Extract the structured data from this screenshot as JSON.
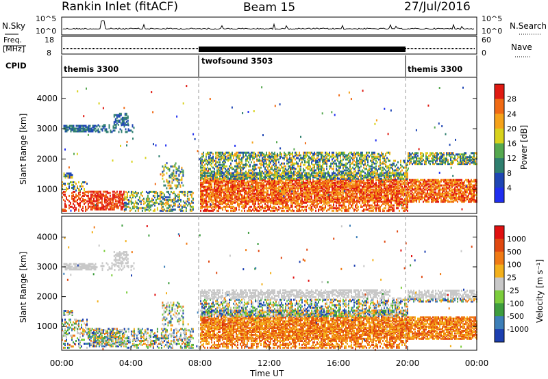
{
  "header": {
    "station": "Rankin Inlet (fitACF)",
    "beam": "Beam 15",
    "date": "27/Jul/2016"
  },
  "chart_data": [
    {
      "type": "line",
      "panel": "noise",
      "left_label": "N.Sky",
      "right_label": "N.Search",
      "ticks_left": [
        "10^5",
        "10^0"
      ],
      "ticks_right": [
        "10^5",
        "10^0"
      ],
      "description_series": [
        {
          "name": "N.Sky",
          "style": "solid"
        },
        {
          "name": "N.Search",
          "style": "dotted"
        }
      ]
    },
    {
      "type": "line",
      "panel": "frequency",
      "left_label": "Freq.",
      "left_unit": "[MHz]",
      "right_label": "Nave",
      "ticks_left": [
        "18",
        "8"
      ],
      "ticks_right": [
        "60",
        "0"
      ]
    },
    {
      "type": "table",
      "panel": "cpid",
      "label": "CPID",
      "segments": [
        {
          "name": "themis 3300",
          "start_hour": 0,
          "end_hour": 8
        },
        {
          "name": "twofsound 3503",
          "start_hour": 8,
          "end_hour": 20
        },
        {
          "name": "themis 3300",
          "start_hour": 20,
          "end_hour": 24
        }
      ]
    },
    {
      "type": "heatmap",
      "panel": "power",
      "ylabel": "Slant Range [km]",
      "yticks": [
        1000,
        2000,
        3000,
        4000
      ],
      "ylim": [
        200,
        4700
      ],
      "colorbar_label": "Power [dB]",
      "colorbar_ticks": [
        "28",
        "24",
        "20",
        "16",
        "12",
        "8",
        "4"
      ],
      "colors": [
        "#1f2ef0",
        "#1f46b4",
        "#2f7f6f",
        "#55a84f",
        "#d8d21c",
        "#f5a21a",
        "#f06a14",
        "#e01a12"
      ]
    },
    {
      "type": "heatmap",
      "panel": "velocity",
      "ylabel": "Slant Range [km]",
      "yticks": [
        1000,
        2000,
        3000,
        4000
      ],
      "ylim": [
        200,
        4700
      ],
      "colorbar_label": "Velocity [m s⁻¹]",
      "colorbar_ticks": [
        "1000",
        "500",
        "100",
        "25",
        "-25",
        "-100",
        "-500",
        "-1000"
      ],
      "colors": [
        "#1c3fb0",
        "#3d7fb8",
        "#3e9d3e",
        "#7ccd3c",
        "#c8c8c8",
        "#f3b01c",
        "#f07a14",
        "#e04810",
        "#e01010"
      ],
      "xlabel": "Time UT",
      "xticks": [
        "00:00",
        "04:00",
        "08:00",
        "12:00",
        "16:00",
        "20:00",
        "00:00"
      ]
    }
  ]
}
